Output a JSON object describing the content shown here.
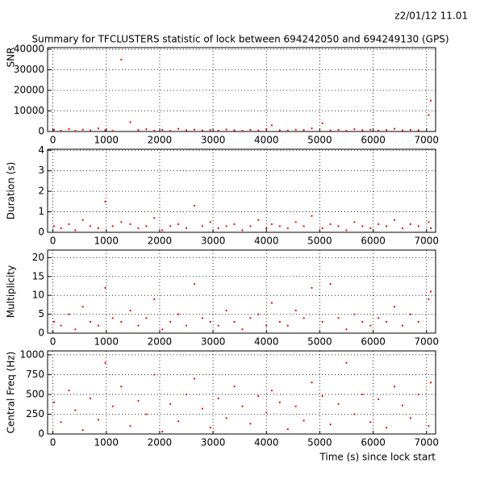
{
  "header": {
    "date": "z2/01/12  11.01",
    "title": "Summary for TFCLUSTERS statistic of lock between 694242050 and 694249130 (GPS)"
  },
  "chart_data": [
    {
      "type": "scatter",
      "ylabel": "SNR",
      "color": "#ff0000",
      "grid": true,
      "xlim": [
        -100,
        7170
      ],
      "xticks": [
        0,
        1000,
        2000,
        3000,
        4000,
        5000,
        6000,
        7000
      ],
      "ylim": [
        0,
        40800
      ],
      "yticks": [
        0,
        10000,
        20000,
        30000,
        40000
      ],
      "x": [
        20,
        150,
        300,
        420,
        560,
        700,
        850,
        980,
        1120,
        1280,
        1450,
        1600,
        1750,
        1900,
        2050,
        2200,
        2350,
        2500,
        2650,
        2800,
        2950,
        3100,
        3250,
        3400,
        3550,
        3700,
        3850,
        4000,
        4100,
        4250,
        4400,
        4550,
        4700,
        4850,
        5050,
        5200,
        5350,
        5500,
        5650,
        5800,
        5950,
        6100,
        6250,
        6400,
        6550,
        6700,
        6850,
        7040,
        7080
      ],
      "values": [
        800,
        400,
        1200,
        300,
        900,
        500,
        1500,
        600,
        300,
        35000,
        4500,
        700,
        1100,
        400,
        800,
        300,
        1300,
        600,
        900,
        500,
        700,
        400,
        1000,
        600,
        300,
        800,
        500,
        1200,
        3000,
        600,
        400,
        900,
        700,
        1500,
        4000,
        500,
        800,
        300,
        1100,
        600,
        900,
        400,
        700,
        1300,
        500,
        800,
        600,
        8000,
        15000
      ]
    },
    {
      "type": "scatter",
      "ylabel": "Duration (s)",
      "color": "#ff0000",
      "grid": true,
      "xlim": [
        -100,
        7170
      ],
      "xticks": [
        0,
        1000,
        2000,
        3000,
        4000,
        5000,
        6000,
        7000
      ],
      "ylim": [
        0,
        4.05
      ],
      "yticks": [
        0,
        1,
        2,
        3,
        4
      ],
      "x": [
        20,
        150,
        300,
        420,
        560,
        700,
        850,
        980,
        1120,
        1280,
        1450,
        1600,
        1750,
        1900,
        2050,
        2200,
        2350,
        2500,
        2650,
        2800,
        2950,
        3100,
        3250,
        3400,
        3550,
        3700,
        3850,
        4000,
        4100,
        4250,
        4400,
        4550,
        4700,
        4850,
        5050,
        5200,
        5350,
        5500,
        5650,
        5800,
        5950,
        6100,
        6250,
        6400,
        6550,
        6700,
        6850,
        7040,
        7080
      ],
      "values": [
        0.3,
        0.2,
        0.4,
        0.1,
        0.6,
        0.3,
        0.2,
        1.5,
        0.3,
        0.5,
        0.4,
        0.2,
        0.3,
        0.7,
        0.1,
        0.3,
        0.4,
        0.2,
        1.3,
        0.3,
        0.5,
        0.2,
        0.3,
        0.4,
        0.1,
        0.3,
        0.6,
        0.2,
        0.4,
        0.3,
        0.2,
        0.5,
        0.3,
        0.8,
        0.2,
        0.4,
        0.3,
        0.1,
        0.5,
        0.3,
        0.2,
        0.4,
        0.3,
        0.6,
        0.2,
        0.4,
        0.3,
        0.5,
        0.2
      ]
    },
    {
      "type": "scatter",
      "ylabel": "Multiplicity",
      "color": "#ff0000",
      "grid": true,
      "xlim": [
        -100,
        7170
      ],
      "xticks": [
        0,
        1000,
        2000,
        3000,
        4000,
        5000,
        6000,
        7000
      ],
      "ylim": [
        0,
        22
      ],
      "yticks": [
        0,
        5,
        10,
        15,
        20
      ],
      "x": [
        20,
        150,
        300,
        420,
        560,
        700,
        850,
        980,
        1120,
        1280,
        1450,
        1600,
        1750,
        1900,
        2050,
        2200,
        2350,
        2500,
        2650,
        2800,
        2950,
        3100,
        3250,
        3400,
        3550,
        3700,
        3850,
        4000,
        4100,
        4250,
        4400,
        4550,
        4700,
        4850,
        5050,
        5200,
        5350,
        5500,
        5650,
        5800,
        5950,
        6100,
        6250,
        6400,
        6550,
        6700,
        6850,
        7040,
        7080
      ],
      "values": [
        3,
        2,
        5,
        1,
        7,
        3,
        2,
        12,
        4,
        3,
        6,
        2,
        4,
        9,
        1,
        3,
        5,
        2,
        13,
        4,
        3,
        2,
        6,
        3,
        1,
        4,
        5,
        2,
        8,
        3,
        2,
        6,
        4,
        12,
        3,
        13,
        4,
        1,
        5,
        3,
        2,
        4,
        3,
        7,
        2,
        5,
        3,
        9,
        11
      ]
    },
    {
      "type": "scatter",
      "ylabel": "Central Freq (Hz)",
      "xlabel": "Time (s) since lock start",
      "color": "#ff0000",
      "grid": true,
      "xlim": [
        -100,
        7170
      ],
      "xticks": [
        0,
        1000,
        2000,
        3000,
        4000,
        5000,
        6000,
        7000
      ],
      "ylim": [
        0,
        1050
      ],
      "yticks": [
        0,
        250,
        500,
        750,
        1000
      ],
      "x": [
        20,
        150,
        300,
        420,
        560,
        700,
        850,
        980,
        1120,
        1280,
        1450,
        1600,
        1750,
        1900,
        2050,
        2200,
        2350,
        2500,
        2650,
        2800,
        2950,
        3100,
        3250,
        3400,
        3550,
        3700,
        3850,
        4000,
        4100,
        4250,
        4400,
        4550,
        4700,
        4850,
        5050,
        5200,
        5350,
        5500,
        5650,
        5800,
        5950,
        6100,
        6250,
        6400,
        6550,
        6700,
        6850,
        7040,
        7080
      ],
      "values": [
        400,
        150,
        550,
        300,
        50,
        450,
        180,
        900,
        350,
        600,
        100,
        420,
        250,
        750,
        30,
        380,
        160,
        500,
        700,
        320,
        80,
        450,
        200,
        600,
        350,
        130,
        480,
        270,
        550,
        400,
        60,
        350,
        170,
        650,
        480,
        120,
        380,
        900,
        250,
        500,
        150,
        440,
        80,
        600,
        360,
        200,
        500,
        100,
        650
      ]
    }
  ]
}
